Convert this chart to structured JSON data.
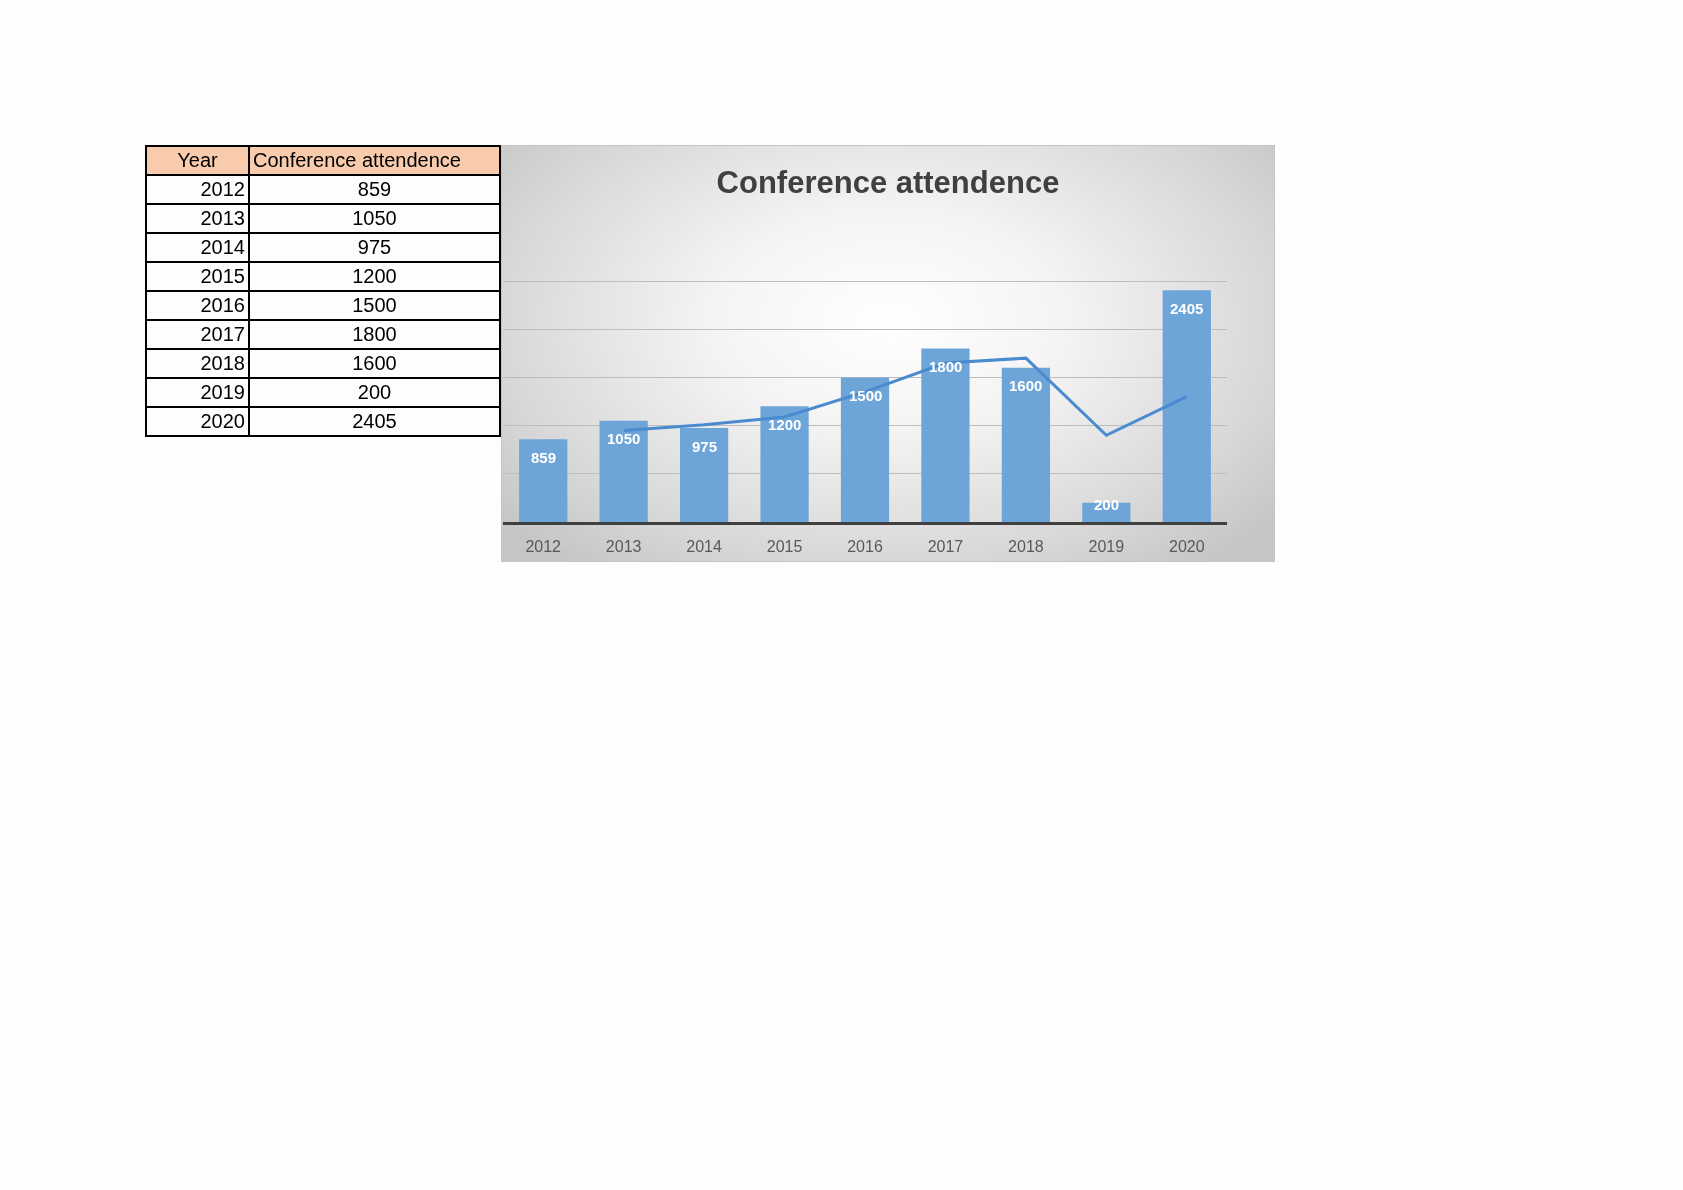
{
  "chart_data": {
    "type": "bar",
    "title": "Conference attendence",
    "annotations": [
      "Year",
      "Conference attendence"
    ],
    "categories": [
      "2012",
      "2013",
      "2014",
      "2015",
      "2016",
      "2017",
      "2018",
      "2019",
      "2020"
    ],
    "series": [
      {
        "color": "#6ea5d9",
        "values": [
          859,
          1050,
          975,
          1200,
          1500,
          1800,
          1600,
          200,
          2405
        ],
        "value_labels": [
          "859",
          "1050",
          "975",
          "1200",
          "1500",
          "1800",
          "1600",
          "200",
          "2405"
        ]
      },
      {
        "type": "line",
        "color": "#4a8bd0",
        "values": [
          null,
          950,
          1010,
          1090,
          1350,
          1650,
          1700,
          900,
          1300
        ]
      }
    ],
    "grid": "y",
    "tick_labels": "x"
  }
}
